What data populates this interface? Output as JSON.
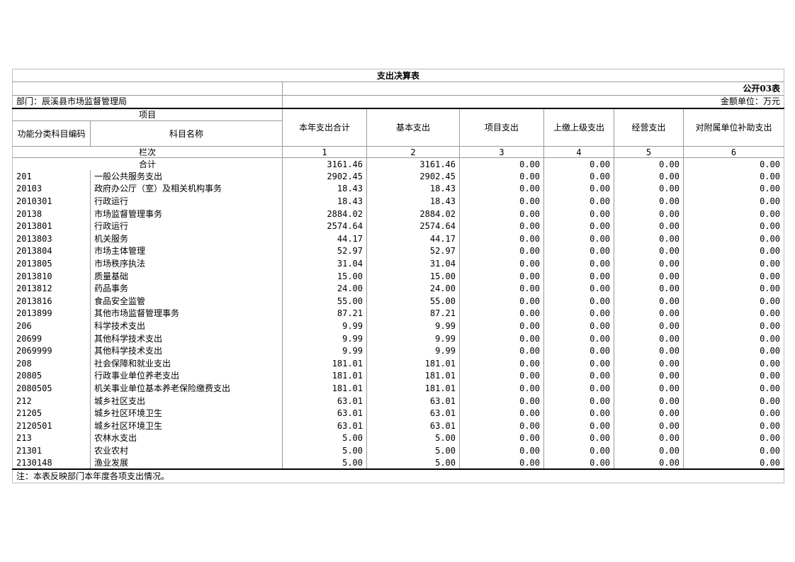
{
  "title": "支出决算表",
  "form_no": "公开03表",
  "department": "部门：辰溪县市场监督管理局",
  "unit": "金额单位：万元",
  "header": {
    "group": "项目",
    "code": "功能分类科目编码",
    "name": "科目名称",
    "columns": [
      "本年支出合计",
      "基本支出",
      "项目支出",
      "上缴上级支出",
      "经营支出",
      "对附属单位补助支出"
    ]
  },
  "index_row": {
    "label": "栏次",
    "numbers": [
      "1",
      "2",
      "3",
      "4",
      "5",
      "6"
    ]
  },
  "total_row": {
    "label": "合计",
    "values": [
      "3161.46",
      "3161.46",
      "0.00",
      "0.00",
      "0.00",
      "0.00"
    ]
  },
  "rows": [
    [
      "201",
      "一般公共服务支出",
      "2902.45",
      "2902.45",
      "0.00",
      "0.00",
      "0.00",
      "0.00"
    ],
    [
      "20103",
      "政府办公厅（室）及相关机构事务",
      "18.43",
      "18.43",
      "0.00",
      "0.00",
      "0.00",
      "0.00"
    ],
    [
      "2010301",
      "行政运行",
      "18.43",
      "18.43",
      "0.00",
      "0.00",
      "0.00",
      "0.00"
    ],
    [
      "20138",
      "市场监督管理事务",
      "2884.02",
      "2884.02",
      "0.00",
      "0.00",
      "0.00",
      "0.00"
    ],
    [
      "2013801",
      "行政运行",
      "2574.64",
      "2574.64",
      "0.00",
      "0.00",
      "0.00",
      "0.00"
    ],
    [
      "2013803",
      "机关服务",
      "44.17",
      "44.17",
      "0.00",
      "0.00",
      "0.00",
      "0.00"
    ],
    [
      "2013804",
      "市场主体管理",
      "52.97",
      "52.97",
      "0.00",
      "0.00",
      "0.00",
      "0.00"
    ],
    [
      "2013805",
      "市场秩序执法",
      "31.04",
      "31.04",
      "0.00",
      "0.00",
      "0.00",
      "0.00"
    ],
    [
      "2013810",
      "质量基础",
      "15.00",
      "15.00",
      "0.00",
      "0.00",
      "0.00",
      "0.00"
    ],
    [
      "2013812",
      "药品事务",
      "24.00",
      "24.00",
      "0.00",
      "0.00",
      "0.00",
      "0.00"
    ],
    [
      "2013816",
      "食品安全监管",
      "55.00",
      "55.00",
      "0.00",
      "0.00",
      "0.00",
      "0.00"
    ],
    [
      "2013899",
      "其他市场监督管理事务",
      "87.21",
      "87.21",
      "0.00",
      "0.00",
      "0.00",
      "0.00"
    ],
    [
      "206",
      "科学技术支出",
      "9.99",
      "9.99",
      "0.00",
      "0.00",
      "0.00",
      "0.00"
    ],
    [
      "20699",
      "其他科学技术支出",
      "9.99",
      "9.99",
      "0.00",
      "0.00",
      "0.00",
      "0.00"
    ],
    [
      "2069999",
      "其他科学技术支出",
      "9.99",
      "9.99",
      "0.00",
      "0.00",
      "0.00",
      "0.00"
    ],
    [
      "208",
      "社会保障和就业支出",
      "181.01",
      "181.01",
      "0.00",
      "0.00",
      "0.00",
      "0.00"
    ],
    [
      "20805",
      "行政事业单位养老支出",
      "181.01",
      "181.01",
      "0.00",
      "0.00",
      "0.00",
      "0.00"
    ],
    [
      "2080505",
      "机关事业单位基本养老保险缴费支出",
      "181.01",
      "181.01",
      "0.00",
      "0.00",
      "0.00",
      "0.00"
    ],
    [
      "212",
      "城乡社区支出",
      "63.01",
      "63.01",
      "0.00",
      "0.00",
      "0.00",
      "0.00"
    ],
    [
      "21205",
      "城乡社区环境卫生",
      "63.01",
      "63.01",
      "0.00",
      "0.00",
      "0.00",
      "0.00"
    ],
    [
      "2120501",
      "城乡社区环境卫生",
      "63.01",
      "63.01",
      "0.00",
      "0.00",
      "0.00",
      "0.00"
    ],
    [
      "213",
      "农林水支出",
      "5.00",
      "5.00",
      "0.00",
      "0.00",
      "0.00",
      "0.00"
    ],
    [
      "21301",
      "农业农村",
      "5.00",
      "5.00",
      "0.00",
      "0.00",
      "0.00",
      "0.00"
    ],
    [
      "2130148",
      "渔业发展",
      "5.00",
      "5.00",
      "0.00",
      "0.00",
      "0.00",
      "0.00"
    ]
  ],
  "note": "注：本表反映部门本年度各项支出情况。"
}
